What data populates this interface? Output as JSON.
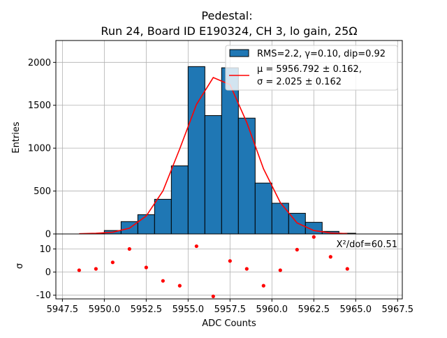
{
  "chart_data": [
    {
      "type": "bar",
      "panel": "main",
      "title_line1": "Pedestal:",
      "title_line2": "Run 24, Board ID E190324, CH 3, lo gain, 25Ω",
      "ylabel": "Entries",
      "xlim": [
        5947.11,
        5967.78
      ],
      "ylim": [
        0,
        2255
      ],
      "yticks": [
        0,
        500,
        1000,
        1500,
        2000
      ],
      "grid": true,
      "bin_edges_start": 5949,
      "bin_width": 1,
      "bins": [
        5949,
        5950,
        5951,
        5952,
        5953,
        5954,
        5955,
        5956,
        5957,
        5958,
        5959,
        5960,
        5961,
        5962,
        5963,
        5964
      ],
      "values": [
        5,
        40,
        144,
        225,
        404,
        794,
        1951,
        1380,
        1937,
        1350,
        593,
        358,
        241,
        136,
        30,
        8
      ],
      "bar_color": "#1f77b4",
      "fit": {
        "x": [
          5948.5,
          5949.5,
          5950.5,
          5951.5,
          5952.5,
          5953.5,
          5954.5,
          5955.5,
          5956.5,
          5957.5,
          5958.5,
          5959.5,
          5960.5,
          5961.5,
          5962.5,
          5963.5,
          5964.5
        ],
        "y": [
          3,
          8,
          20,
          67,
          209,
          502,
          992,
          1510,
          1823,
          1740,
          1300,
          759,
          366,
          128,
          40,
          12,
          4
        ],
        "color": "#ff0000"
      },
      "legend": {
        "placement": "top-right",
        "hist_label": "RMS=2.2, γ=0.10, dip=0.92",
        "fit_label_line1": "μ = 5956.792 ± 0.162,",
        "fit_label_line2": "σ = 2.025 ± 0.162"
      }
    },
    {
      "type": "scatter",
      "panel": "residuals",
      "xlabel": "ADC Counts",
      "ylabel": "σ",
      "xlim": [
        5947.11,
        5967.78
      ],
      "ylim": [
        -11.6,
        16.5
      ],
      "xticks": [
        5947.5,
        5950.0,
        5952.5,
        5955.0,
        5957.5,
        5960.0,
        5962.5,
        5965.0,
        5967.5
      ],
      "xtick_labels": [
        "5947.5",
        "5950.0",
        "5952.5",
        "5955.0",
        "5957.5",
        "5960.0",
        "5962.5",
        "5965.0",
        "5967.5"
      ],
      "yticks": [
        -10,
        0,
        10
      ],
      "grid": true,
      "x": [
        5948.5,
        5949.5,
        5950.5,
        5951.5,
        5952.5,
        5953.5,
        5954.5,
        5955.5,
        5956.5,
        5957.5,
        5958.5,
        5959.5,
        5960.5,
        5961.5,
        5962.5,
        5963.5,
        5964.5
      ],
      "y": [
        0.8,
        1.4,
        4.2,
        10.0,
        2.0,
        -3.8,
        -5.9,
        11.2,
        -10.5,
        4.8,
        1.4,
        -5.9,
        0.8,
        9.7,
        15.2,
        6.6,
        1.4
      ],
      "color": "#ff0000",
      "annotation": "X²/dof=60.51"
    }
  ]
}
